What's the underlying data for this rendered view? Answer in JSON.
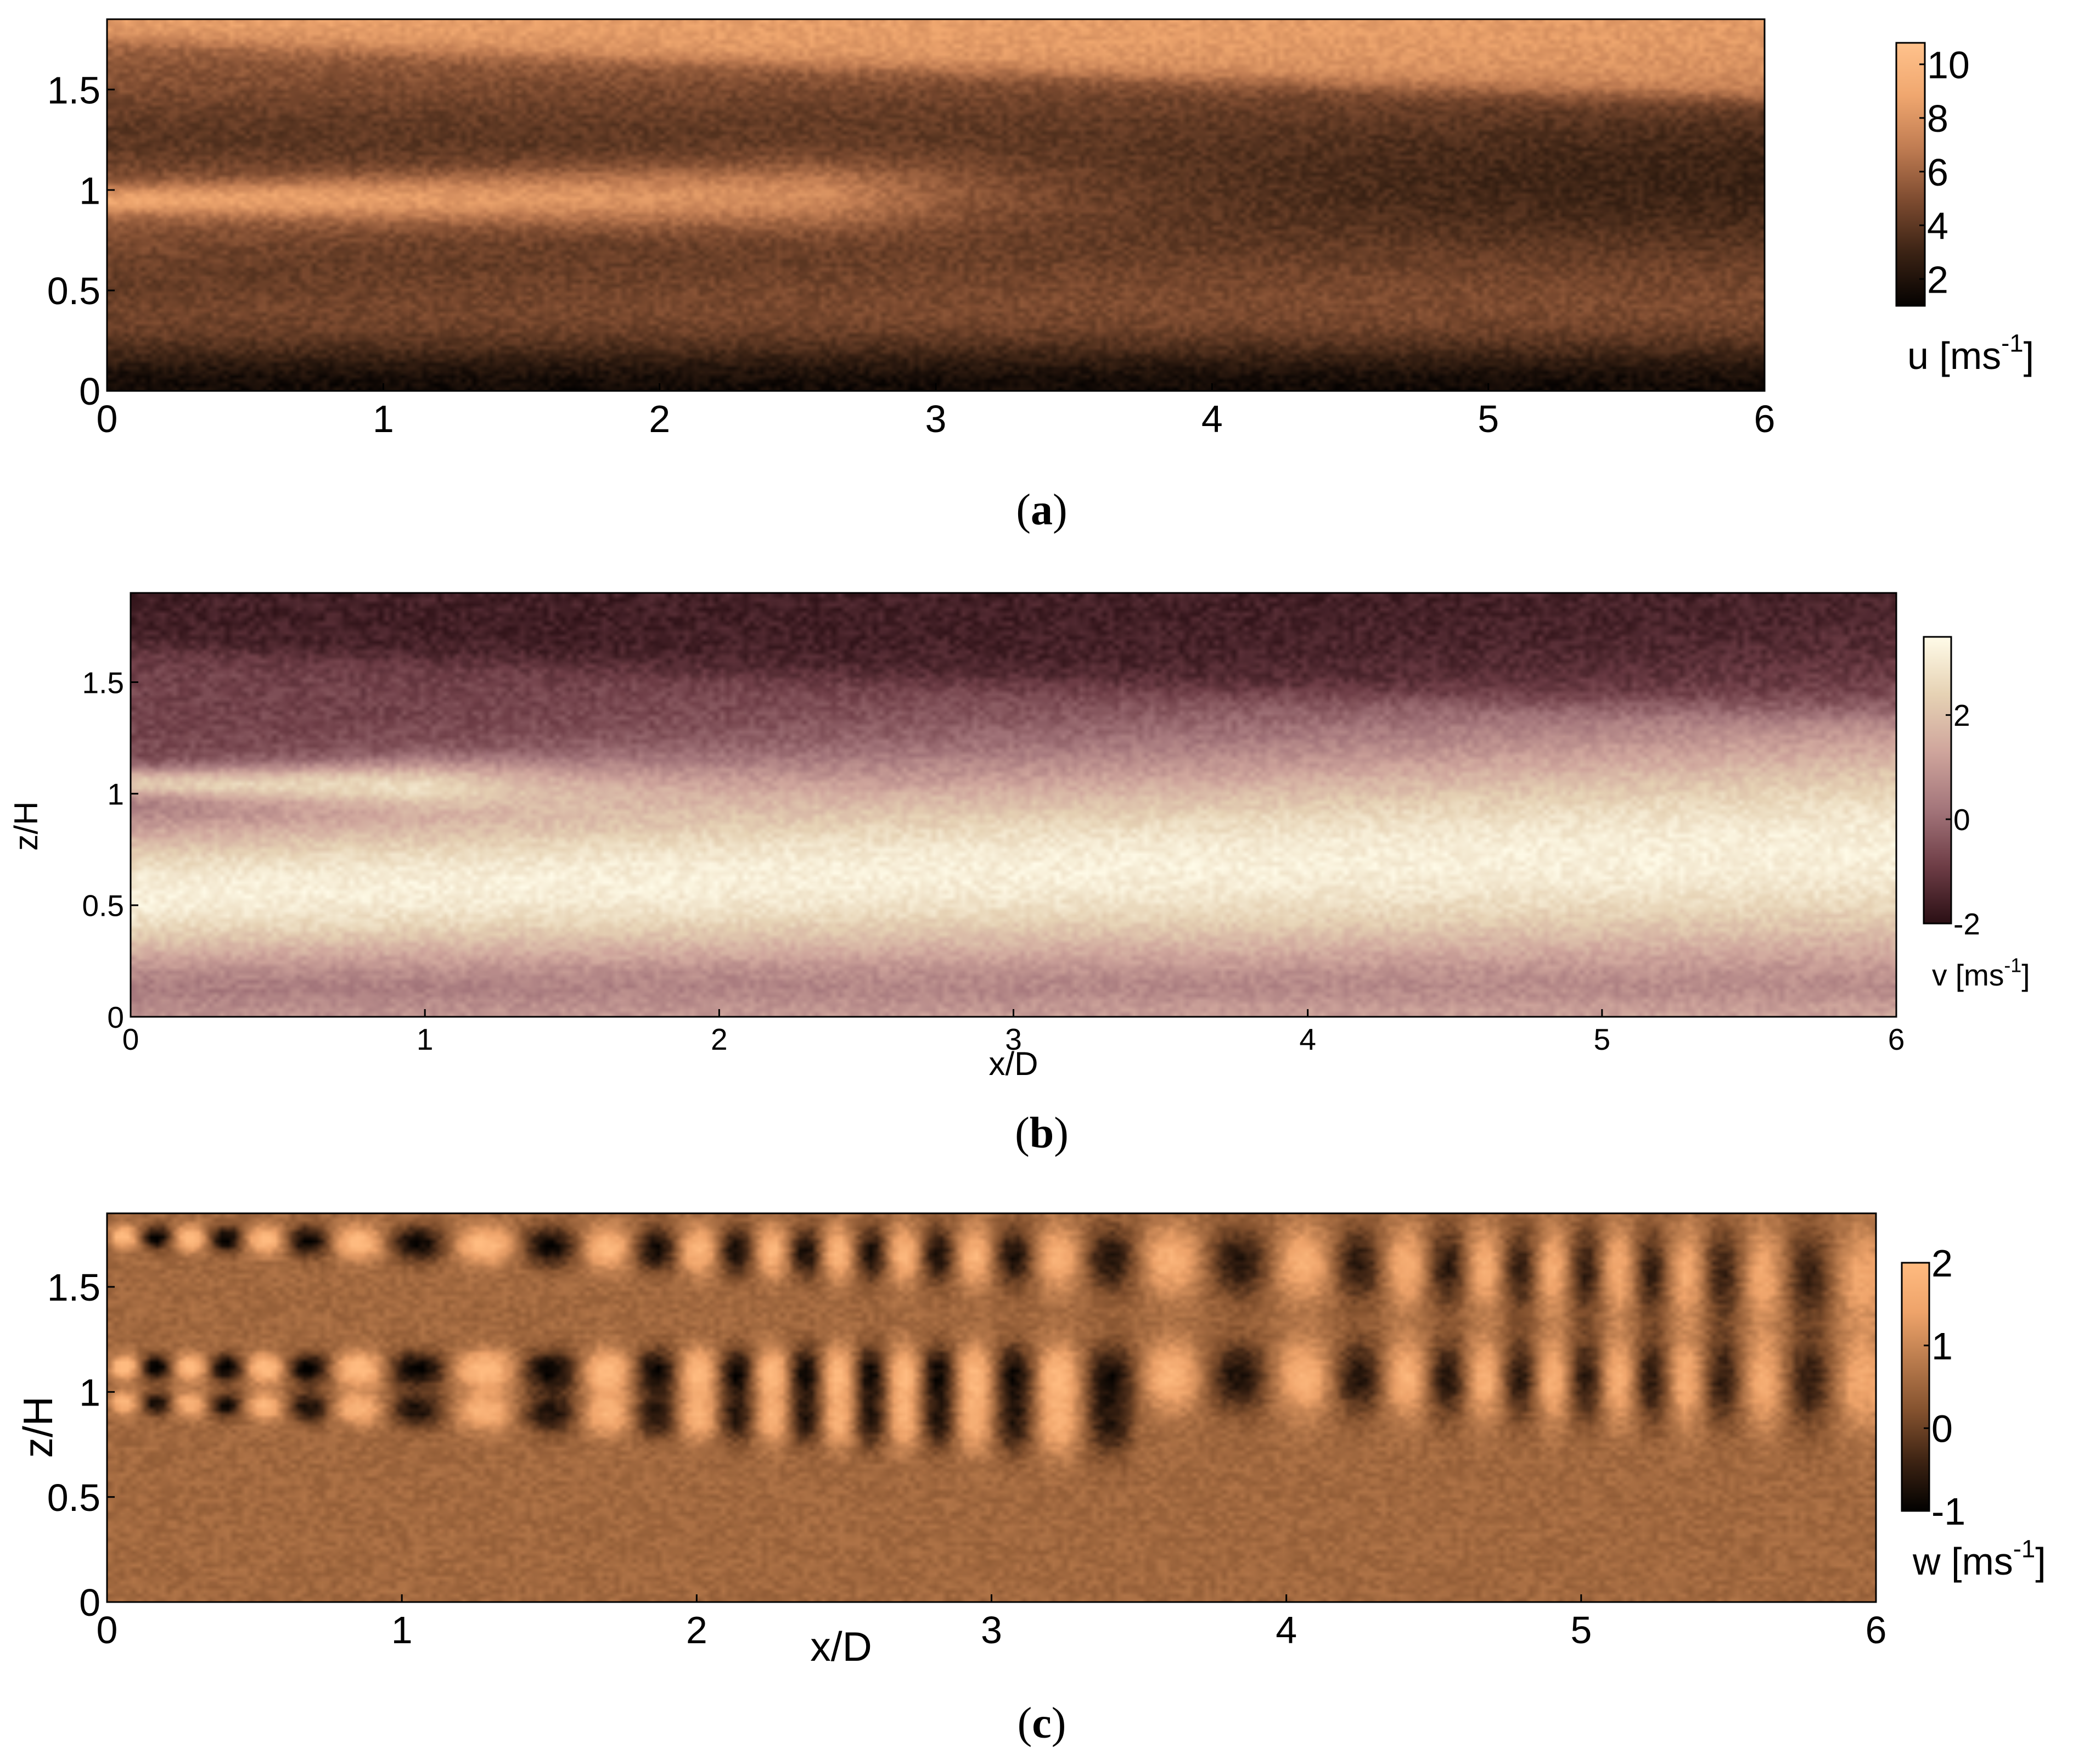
{
  "chart_data": [
    {
      "id": "a",
      "type": "heatmap",
      "panel_label": "a",
      "title": "",
      "xlabel": "",
      "ylabel": "",
      "xlim": [
        0,
        6
      ],
      "ylim": [
        0,
        1.85
      ],
      "xticks": [
        "0",
        "1",
        "2",
        "3",
        "4",
        "5",
        "6"
      ],
      "yticks": [
        "0",
        "0.5",
        "1",
        "1.5"
      ],
      "colorbar": {
        "label_main": "u [ms",
        "label_sup": "-1",
        "label_end": "]",
        "ticks": [
          "2",
          "4",
          "6",
          "8",
          "10"
        ],
        "range": [
          1,
          10.8
        ],
        "colors": [
          "#050201",
          "#3a2214",
          "#7d4b30",
          "#c07c52",
          "#f0a76f",
          "#ffc28c"
        ]
      },
      "field": {
        "base": 5.5,
        "features": [
          {
            "kind": "band",
            "z0": 0.95,
            "z1": 1.0,
            "width": 0.07,
            "amp": 3.5,
            "x_end": 2.6
          },
          {
            "kind": "band",
            "z0": 1.28,
            "z1": 1.15,
            "width": 0.22,
            "amp": -1.5,
            "x_end": 6
          },
          {
            "kind": "band",
            "z0": 0.55,
            "z1": 0.95,
            "width": 0.2,
            "amp": -1.2,
            "x_end": 6
          },
          {
            "kind": "top",
            "z": 1.75,
            "amp": 3.0
          },
          {
            "kind": "floor",
            "z": 0.25,
            "amp": -4.0
          }
        ]
      }
    },
    {
      "id": "b",
      "type": "heatmap",
      "panel_label": "b",
      "title": "",
      "xlabel": "x/D",
      "ylabel": "z/H",
      "xlim": [
        0,
        6
      ],
      "ylim": [
        0,
        1.9
      ],
      "xticks": [
        "0",
        "1",
        "2",
        "3",
        "4",
        "5",
        "6"
      ],
      "yticks": [
        "0",
        "0.5",
        "1",
        "1.5"
      ],
      "colorbar": {
        "label_main": "v [ms",
        "label_sup": "-1",
        "label_end": "]",
        "ticks": [
          "-2",
          "0",
          "2"
        ],
        "range": [
          -2,
          3.5
        ],
        "colors": [
          "#2a0f14",
          "#6e3d46",
          "#a4767b",
          "#cfa59c",
          "#e6d2b4",
          "#fffbe8"
        ]
      },
      "field": {
        "base": -0.8,
        "features": [
          {
            "kind": "band",
            "z0": 0.55,
            "z1": 0.75,
            "width": 0.35,
            "amp": 4.0,
            "x_end": 6
          },
          {
            "kind": "band",
            "z0": 1.05,
            "z1": 1.0,
            "width": 0.06,
            "amp": 2.5,
            "x_end": 1.0
          },
          {
            "kind": "top",
            "z": 1.65,
            "amp": -0.8
          },
          {
            "kind": "floor",
            "z": 0.1,
            "amp": 1.2
          }
        ]
      }
    },
    {
      "id": "c",
      "type": "heatmap",
      "panel_label": "c",
      "title": "",
      "xlabel": "x/D",
      "ylabel": "z/H",
      "xlim": [
        0,
        6
      ],
      "ylim": [
        0,
        1.85
      ],
      "xticks": [
        "0",
        "1",
        "2",
        "3",
        "4",
        "5",
        "6"
      ],
      "yticks": [
        "0",
        "0.5",
        "1",
        "1.5"
      ],
      "colorbar": {
        "label_main": "w [ms",
        "label_sup": "-1",
        "label_end": "]",
        "ticks": [
          "-1",
          "0",
          "1",
          "2"
        ],
        "range": [
          -1,
          2
        ],
        "colors": [
          "#020100",
          "#3d2313",
          "#83512e",
          "#b87a4c",
          "#eea36a",
          "#ffbb80"
        ]
      },
      "field": {
        "base": 0.55,
        "features": [
          {
            "kind": "vortex",
            "z0": 1.74,
            "z1": 1.55,
            "amp": 1.6,
            "x_end": 6
          },
          {
            "kind": "vortex",
            "z0": 1.12,
            "z1": 1.05,
            "amp": 1.7,
            "x_end": 6
          },
          {
            "kind": "vortex",
            "z0": 0.95,
            "z1": 0.75,
            "amp": 1.4,
            "x_end": 3.5
          }
        ]
      }
    }
  ]
}
